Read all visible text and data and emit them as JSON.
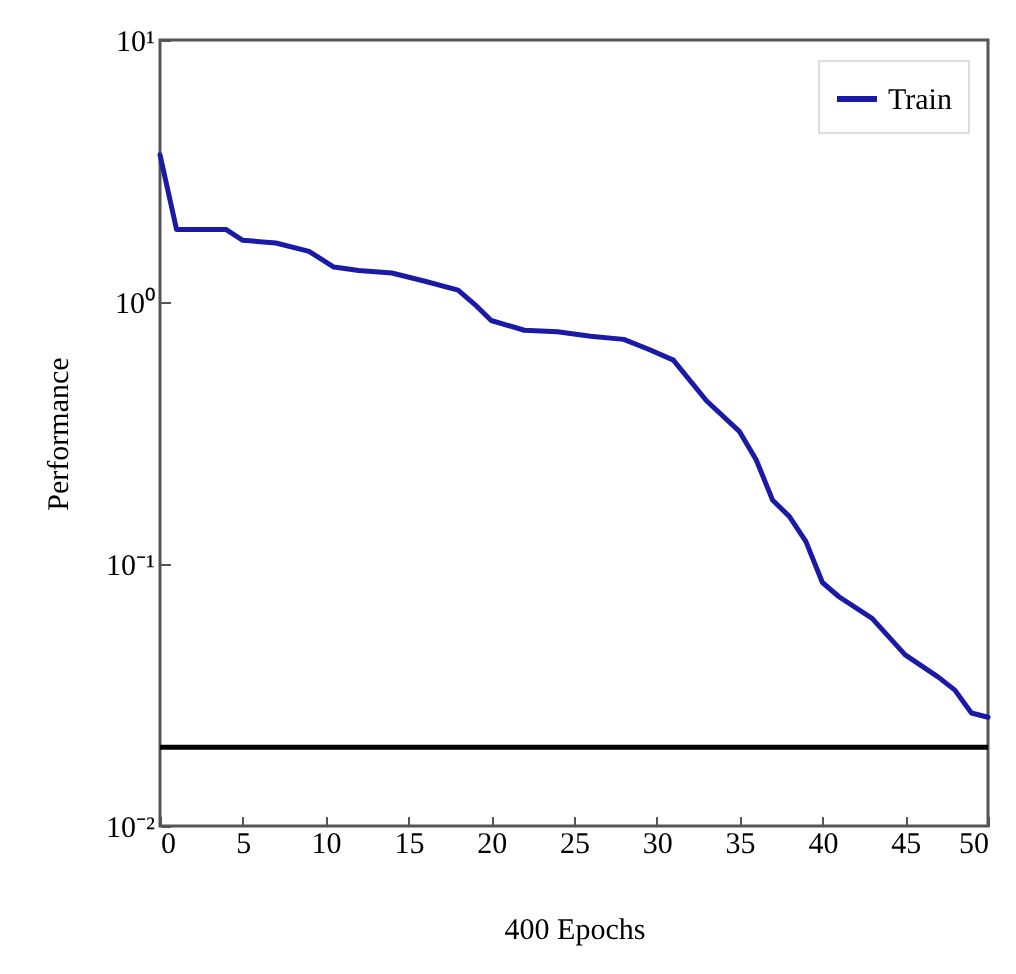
{
  "chart_data": {
    "type": "line",
    "xlabel": "400 Epochs",
    "ylabel": "Performance",
    "xlim": [
      0,
      50
    ],
    "xticks": [
      0,
      5,
      10,
      15,
      20,
      25,
      30,
      35,
      40,
      45,
      50
    ],
    "ylim": [
      0.01,
      10
    ],
    "yticks": [
      {
        "value": 0.01,
        "label": "10⁻²"
      },
      {
        "value": 0.1,
        "label": "10⁻¹"
      },
      {
        "value": 1,
        "label": "10⁰"
      },
      {
        "value": 10,
        "label": "10¹"
      }
    ],
    "log": "y",
    "grid": false,
    "legend": "top right",
    "line_style": "solid",
    "marker": "none",
    "ref_lines": [
      {
        "axis": "y",
        "value": 0.02,
        "color": "#000000"
      }
    ],
    "series": [
      {
        "name": "Train",
        "color": "#1a1aa6",
        "x": [
          0,
          1,
          4,
          5,
          7,
          9,
          10.5,
          12,
          14,
          16,
          18,
          19,
          20,
          22,
          24,
          26,
          28,
          29.5,
          31,
          33,
          35,
          36,
          37,
          38,
          39,
          40,
          41,
          43,
          45,
          47,
          48,
          49,
          50
        ],
        "values": [
          3.65,
          1.89,
          1.89,
          1.72,
          1.68,
          1.56,
          1.36,
          1.32,
          1.29,
          1.2,
          1.11,
          0.98,
          0.85,
          0.78,
          0.77,
          0.74,
          0.72,
          0.66,
          0.6,
          0.42,
          0.32,
          0.25,
          0.175,
          0.152,
          0.122,
          0.085,
          0.075,
          0.062,
          0.045,
          0.037,
          0.033,
          0.027,
          0.026
        ]
      }
    ]
  }
}
